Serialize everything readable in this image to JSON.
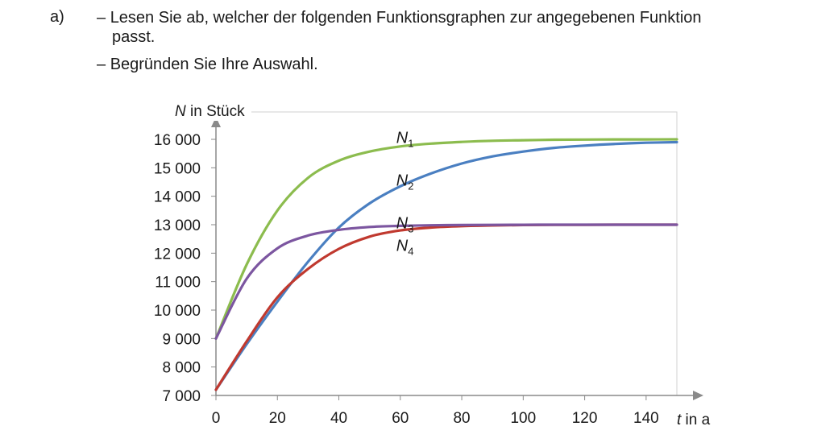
{
  "task": {
    "letter": "a)",
    "bullet1_dash": "–",
    "bullet1_line1": "Lesen Sie ab, welcher der folgenden Funktionsgraphen zur angegebenen Funktion",
    "bullet1_line2": "passt.",
    "bullet2_dash": "–",
    "bullet2_text": "Begründen Sie Ihre Auswahl."
  },
  "chart_data": {
    "type": "line",
    "ylabel_var": "N",
    "ylabel_rest": " in Stück",
    "xlabel_var": "t",
    "xlabel_rest": " in a",
    "xlim": [
      0,
      150
    ],
    "ylim": [
      7000,
      16000
    ],
    "grid": false,
    "x_ticks": [
      0,
      20,
      40,
      60,
      80,
      100,
      120,
      140
    ],
    "x_tick_labels": [
      "0",
      "20",
      "40",
      "60",
      "80",
      "100",
      "120",
      "140"
    ],
    "y_ticks": [
      7000,
      8000,
      9000,
      10000,
      11000,
      12000,
      13000,
      14000,
      15000,
      16000
    ],
    "y_tick_labels": [
      "7 000",
      "8 000",
      "9 000",
      "10 000",
      "11 000",
      "12 000",
      "13 000",
      "14 000",
      "15 000",
      "16 000"
    ],
    "x": [
      0,
      10,
      20,
      30,
      40,
      50,
      60,
      70,
      80,
      90,
      100,
      110,
      120,
      130,
      140,
      150
    ],
    "series": [
      {
        "name": "N",
        "sub": "1",
        "color": "#8cbc4e",
        "label_at": [
          60,
          16100
        ],
        "values": [
          9000,
          11600,
          13500,
          14650,
          15250,
          15570,
          15750,
          15850,
          15910,
          15950,
          15970,
          15985,
          15992,
          15996,
          15998,
          15999
        ]
      },
      {
        "name": "N",
        "sub": "2",
        "color": "#4a7fc1",
        "label_at": [
          60,
          14600
        ],
        "values": [
          7200,
          8800,
          10300,
          11700,
          12900,
          13750,
          14350,
          14800,
          15150,
          15400,
          15570,
          15700,
          15780,
          15840,
          15880,
          15900
        ]
      },
      {
        "name": "N",
        "sub": "3",
        "color": "#7c56a0",
        "label_at": [
          60,
          13100
        ],
        "values": [
          9000,
          11100,
          12170,
          12620,
          12820,
          12920,
          12960,
          12980,
          12990,
          12995,
          12998,
          12999,
          13000,
          13000,
          13000,
          13000
        ]
      },
      {
        "name": "N",
        "sub": "4",
        "color": "#c0392f",
        "label_at": [
          60,
          12300
        ],
        "values": [
          7200,
          8900,
          10450,
          11450,
          12150,
          12580,
          12800,
          12900,
          12950,
          12975,
          12988,
          12994,
          12997,
          12999,
          13000,
          13000
        ]
      }
    ]
  }
}
